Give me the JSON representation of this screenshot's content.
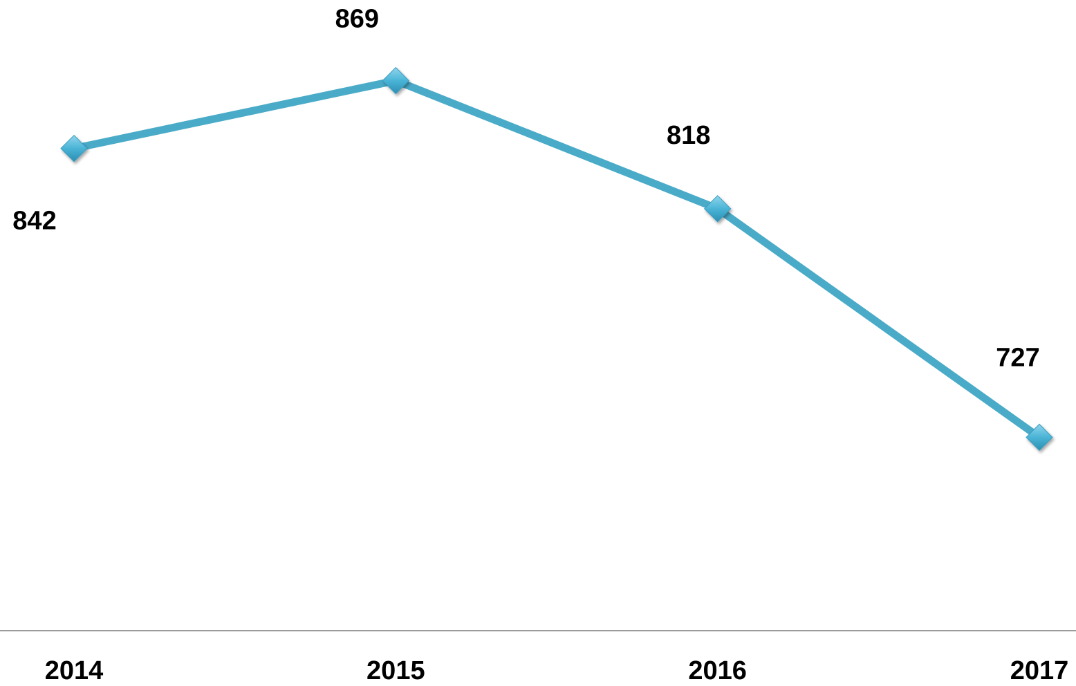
{
  "chart_data": {
    "type": "line",
    "categories": [
      "2014",
      "2015",
      "2016",
      "2017"
    ],
    "values": [
      842,
      869,
      818,
      727
    ],
    "color": "#4aabc8",
    "ylim": [
      650,
      900
    ],
    "markers": "diamond"
  }
}
